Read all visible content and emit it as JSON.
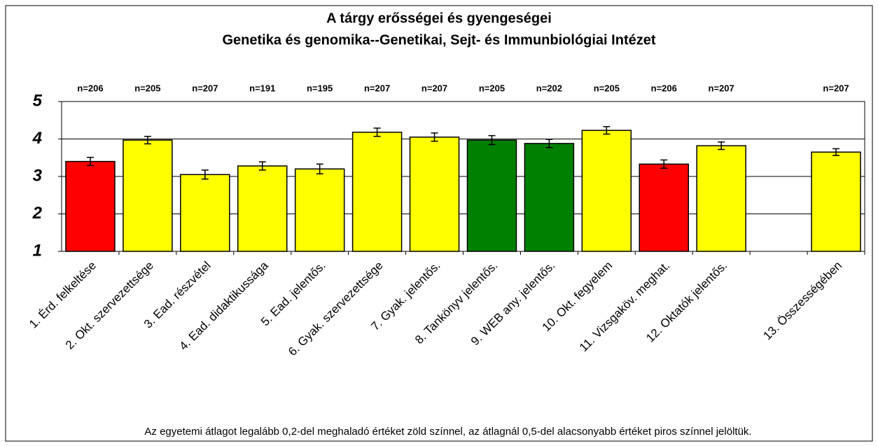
{
  "chart_data": {
    "type": "bar",
    "title": [
      "A tárgy erősségei és gyengeségei",
      "Genetika és genomika--Genetikai, Sejt- és Immunbiológiai Intézet"
    ],
    "categories": [
      "1. Érd. felkeltése",
      "2. Okt. szervezettsége",
      "3. Ead. részvétel",
      "4. Ead. didaktikussága",
      "5. Ead. jelentős.",
      "6. Gyak. szervezettsége",
      "7. Gyak. jelentős.",
      "8. Tankönyv jelentős.",
      "9. WEB any. jelentős.",
      "10. Okt. fegyelem",
      "11. Vizsgaköv. meghat.",
      "12. Oktatók jelentős.",
      null,
      "13. Összességében"
    ],
    "values": [
      3.4,
      3.97,
      3.05,
      3.28,
      3.2,
      4.18,
      4.05,
      3.97,
      3.88,
      4.23,
      3.33,
      3.82,
      null,
      3.65
    ],
    "errors": [
      0.11,
      0.1,
      0.12,
      0.11,
      0.13,
      0.11,
      0.11,
      0.12,
      0.11,
      0.1,
      0.11,
      0.1,
      null,
      0.09
    ],
    "colors": [
      "#ff0000",
      "#ffff00",
      "#ffff00",
      "#ffff00",
      "#ffff00",
      "#ffff00",
      "#ffff00",
      "#008000",
      "#008000",
      "#ffff00",
      "#ff0000",
      "#ffff00",
      null,
      "#ffff00"
    ],
    "n_labels": [
      "n=206",
      "n=205",
      "n=207",
      "n=191",
      "n=195",
      "n=207",
      "n=207",
      "n=205",
      "n=202",
      "n=205",
      "n=206",
      "n=207",
      null,
      "n=207"
    ],
    "ylim": [
      1,
      5
    ],
    "yticks": [
      1,
      2,
      3,
      4,
      5
    ],
    "grid": true,
    "annotation": "Az egyetemi átlagot legalább 0,2-del meghaladó értéket zöld színnel, az átlagnál 0,5-del alacsonyabb értéket piros színnel jelöltük."
  }
}
